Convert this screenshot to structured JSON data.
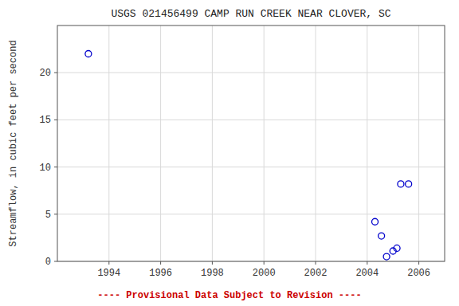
{
  "chart_data": {
    "type": "scatter",
    "title": "USGS 021456499 CAMP RUN CREEK NEAR CLOVER, SC",
    "ylabel": "Streamflow, in cubic feet per second",
    "note": "---- Provisional Data Subject to Revision ----",
    "x": [
      1993.2,
      2004.3,
      2004.55,
      2004.75,
      2005.0,
      2005.15,
      2005.3,
      2005.6
    ],
    "values": [
      22.0,
      4.2,
      2.7,
      0.5,
      1.1,
      1.4,
      8.2,
      8.2
    ],
    "color": "#0000CC",
    "marker": "open-circle",
    "xlim": [
      1992,
      2007
    ],
    "ylim": [
      0,
      25
    ],
    "xticks": [
      1994,
      1996,
      1998,
      2000,
      2002,
      2004,
      2006
    ],
    "yticks": [
      0,
      5,
      10,
      15,
      20
    ],
    "grid": true
  }
}
